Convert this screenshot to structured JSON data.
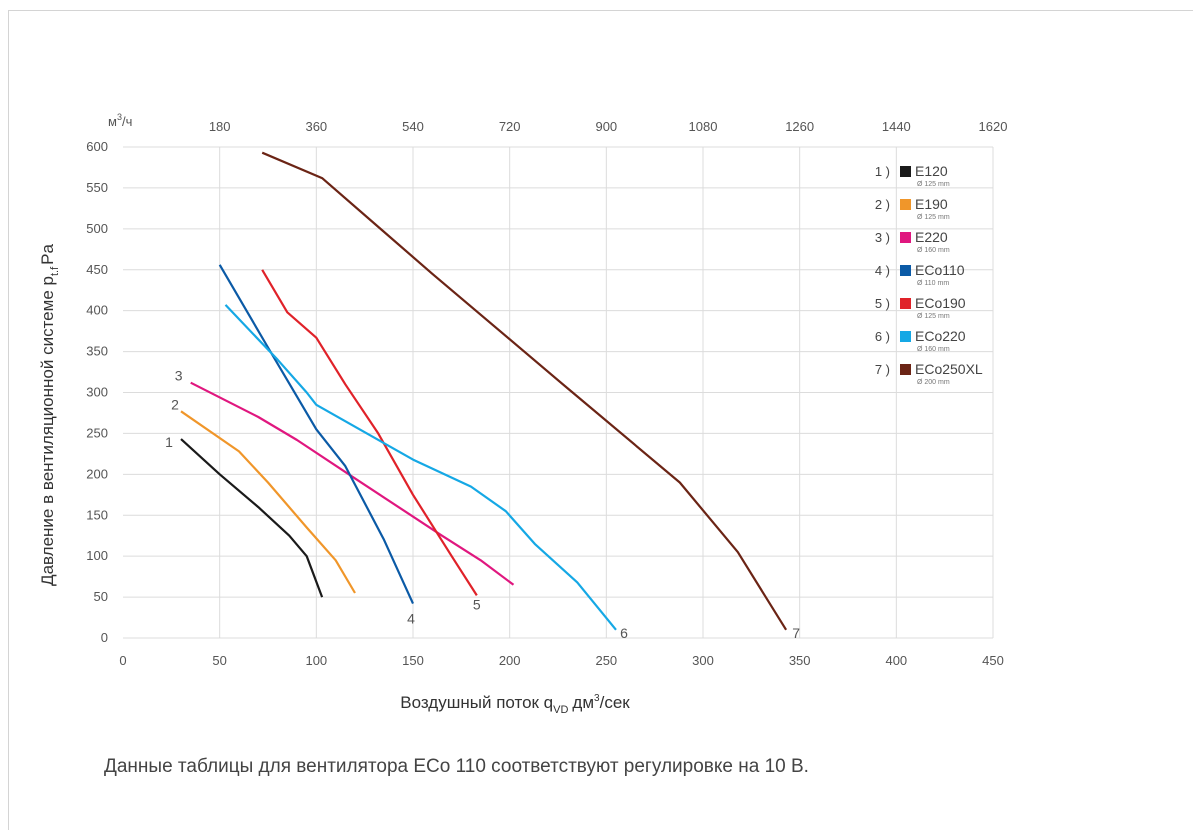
{
  "note": "Данные таблицы для вентилятора ECo 110 соответствуют регулировке на 10 В.",
  "chart_data": {
    "type": "line",
    "ylabel_main": "Давление в вентиляционной системе p",
    "ylabel_sub": "t.f",
    "ylabel_unit": "Pa",
    "xlabel_main": "Воздушный поток q",
    "xlabel_sub": "VD",
    "xlabel_unit": "дм",
    "xlabel_sup": "3",
    "xlabel_tail": "/сек",
    "top_unit_main": "м",
    "top_unit_sup": "3",
    "top_unit_tail": "/ч",
    "xlim": [
      0,
      450
    ],
    "ylim": [
      0,
      600
    ],
    "x_ticks": [
      "0",
      "50",
      "100",
      "150",
      "200",
      "250",
      "300",
      "350",
      "400",
      "450"
    ],
    "y_ticks": [
      "0",
      "50",
      "100",
      "150",
      "200",
      "250",
      "300",
      "350",
      "400",
      "450",
      "500",
      "550",
      "600"
    ],
    "top_ticks": [
      "180",
      "360",
      "540",
      "720",
      "900",
      "1080",
      "1260",
      "1440",
      "1620"
    ],
    "grid": true,
    "legend_position": "top-right",
    "series": [
      {
        "num": "1 )",
        "name": "E120",
        "sub": "Ø 125 mm",
        "curve_label": "1",
        "color": "#1a1a1a",
        "points": [
          [
            30,
            243
          ],
          [
            50,
            200
          ],
          [
            70,
            160
          ],
          [
            86,
            125
          ],
          [
            95,
            100
          ],
          [
            103,
            50
          ]
        ]
      },
      {
        "num": "2 )",
        "name": "E190",
        "sub": "Ø 125 mm",
        "curve_label": "2",
        "color": "#f0962a",
        "points": [
          [
            30,
            277
          ],
          [
            60,
            228
          ],
          [
            75,
            190
          ],
          [
            95,
            135
          ],
          [
            110,
            95
          ],
          [
            120,
            55
          ]
        ]
      },
      {
        "num": "3 )",
        "name": "E220",
        "sub": "Ø 160 mm",
        "curve_label": "3",
        "color": "#e0177f",
        "points": [
          [
            35,
            312
          ],
          [
            70,
            270
          ],
          [
            90,
            242
          ],
          [
            120,
            195
          ],
          [
            165,
            125
          ],
          [
            185,
            95
          ],
          [
            202,
            65
          ]
        ]
      },
      {
        "num": "4 )",
        "name": "ECo110",
        "sub": "Ø 110 mm",
        "curve_label": "4",
        "color": "#0b5aa6",
        "points": [
          [
            50,
            456
          ],
          [
            75,
            355
          ],
          [
            100,
            255
          ],
          [
            115,
            210
          ],
          [
            135,
            120
          ],
          [
            150,
            42
          ]
        ]
      },
      {
        "num": "5 )",
        "name": "ECo190",
        "sub": "Ø 125 mm",
        "curve_label": "5",
        "color": "#e02229",
        "points": [
          [
            72,
            450
          ],
          [
            85,
            398
          ],
          [
            100,
            367
          ],
          [
            115,
            310
          ],
          [
            132,
            250
          ],
          [
            150,
            175
          ],
          [
            170,
            100
          ],
          [
            183,
            52
          ]
        ]
      },
      {
        "num": "6 )",
        "name": "ECo220",
        "sub": "Ø 160 mm",
        "curve_label": "6",
        "color": "#15a8e5",
        "points": [
          [
            53,
            407
          ],
          [
            80,
            340
          ],
          [
            95,
            300
          ],
          [
            100,
            285
          ],
          [
            150,
            218
          ],
          [
            180,
            185
          ],
          [
            198,
            155
          ],
          [
            213,
            115
          ],
          [
            235,
            68
          ],
          [
            255,
            10
          ]
        ]
      },
      {
        "num": "7 )",
        "name": "ECo250XL",
        "sub": "Ø 200 mm",
        "curve_label": "7",
        "color": "#6b2415",
        "points": [
          [
            72,
            593
          ],
          [
            103,
            562
          ],
          [
            160,
            445
          ],
          [
            230,
            305
          ],
          [
            288,
            190
          ],
          [
            318,
            105
          ],
          [
            343,
            10
          ]
        ]
      }
    ]
  }
}
